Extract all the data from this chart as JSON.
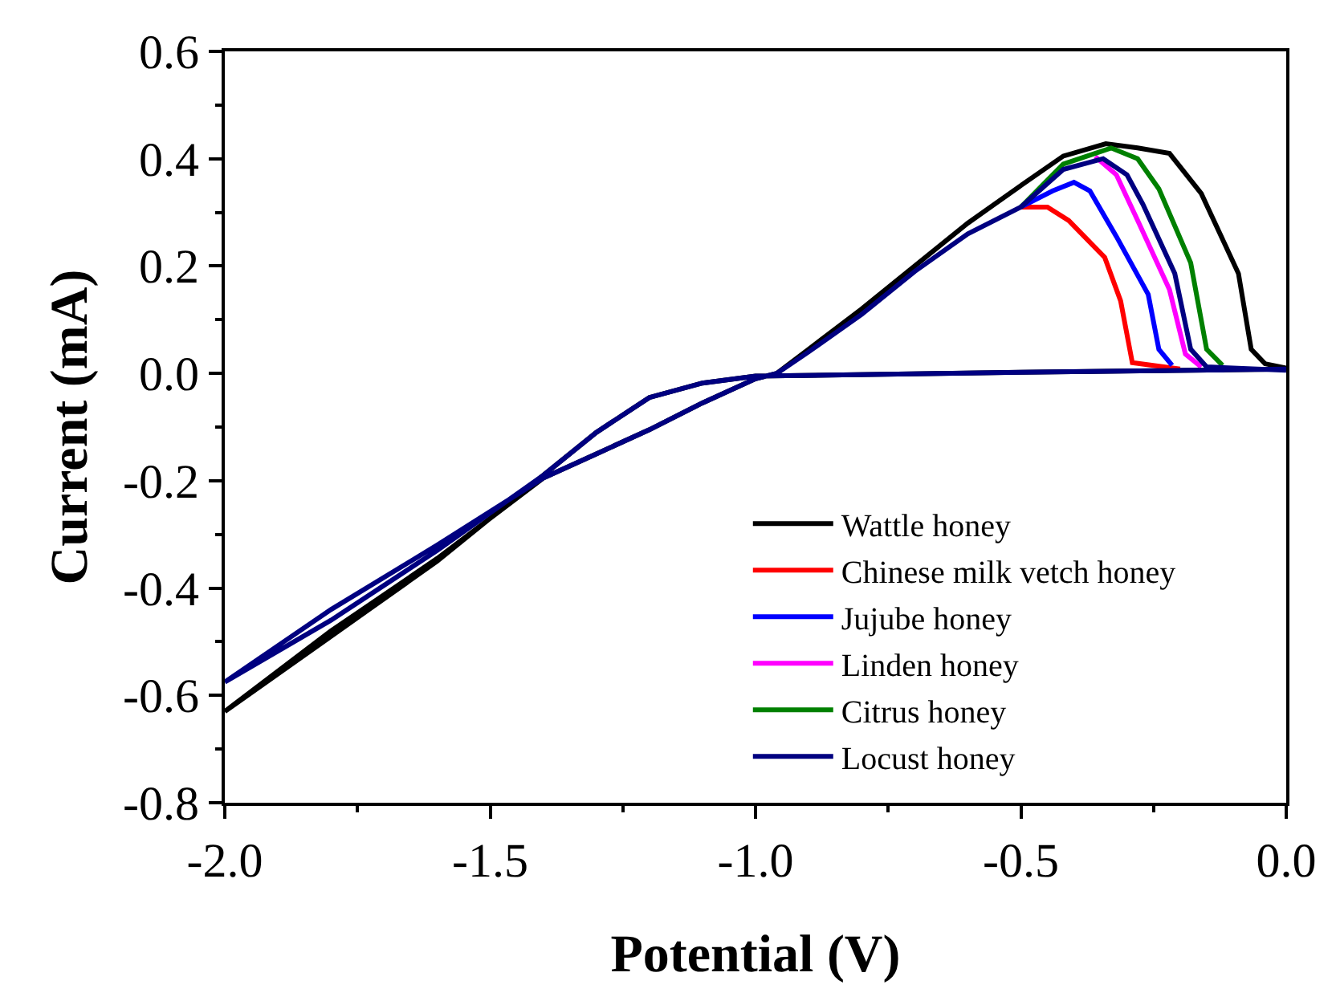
{
  "chart_data": {
    "type": "line",
    "xlabel": "Potential (V)",
    "ylabel": "Current (mA)",
    "xlim": [
      -2.0,
      0.0
    ],
    "xticks": [
      {
        "value": -2.0,
        "label": "-2.0"
      },
      {
        "value": -1.5,
        "label": "-1.5"
      },
      {
        "value": -1.0,
        "label": "-1.0"
      },
      {
        "value": -0.5,
        "label": "-0.5"
      },
      {
        "value": 0.0,
        "label": "0.0"
      }
    ],
    "ylim": [
      -0.8,
      0.6
    ],
    "yticks": [
      {
        "value": -0.8,
        "label": "-0.8"
      },
      {
        "value": -0.6,
        "label": "-0.6"
      },
      {
        "value": -0.4,
        "label": "-0.4"
      },
      {
        "value": -0.2,
        "label": "-0.2"
      },
      {
        "value": 0.0,
        "label": "0.0"
      },
      {
        "value": 0.2,
        "label": "0.2"
      },
      {
        "value": 0.4,
        "label": "0.4"
      },
      {
        "value": 0.6,
        "label": "0.6"
      }
    ],
    "legend": "bottom right",
    "marker": "none",
    "line_style": "solid",
    "series": [
      {
        "name": "Wattle honey",
        "color": "#000000",
        "x": [
          0,
          -0.5,
          -1.0,
          -1.1,
          -1.2,
          -1.3,
          -1.4,
          -1.6,
          -1.8,
          -2.0,
          -1.8,
          -1.6,
          -1.4,
          -1.3,
          -1.2,
          -1.1,
          -1.0,
          -0.96,
          -0.9,
          -0.8,
          -0.7,
          -0.6,
          -0.5,
          -0.42,
          -0.34,
          -0.28,
          -0.22,
          -0.16,
          -0.09,
          -0.066,
          -0.04,
          0
        ],
        "values": [
          0.008,
          0.002,
          -0.005,
          -0.018,
          -0.045,
          -0.11,
          -0.19,
          -0.35,
          -0.49,
          -0.63,
          -0.48,
          -0.345,
          -0.195,
          -0.15,
          -0.105,
          -0.055,
          -0.01,
          0,
          0.045,
          0.12,
          0.2,
          0.28,
          0.35,
          0.405,
          0.428,
          0.42,
          0.41,
          0.335,
          0.186,
          0.045,
          0.018,
          0.01
        ]
      },
      {
        "name": "Chinese milk vetch honey",
        "color": "#ff0000",
        "x": [
          -0.5,
          -0.45,
          -0.41,
          -0.342,
          -0.312,
          -0.29,
          -0.2
        ],
        "values": [
          0.31,
          0.31,
          0.285,
          0.216,
          0.135,
          0.02,
          0.008
        ]
      },
      {
        "name": "Jujube honey",
        "color": "#0000ff",
        "x": [
          -0.5,
          -0.44,
          -0.4,
          -0.37,
          -0.32,
          -0.26,
          -0.24,
          -0.215
        ],
        "values": [
          0.31,
          0.34,
          0.356,
          0.34,
          0.255,
          0.147,
          0.045,
          0.015
        ]
      },
      {
        "name": "Linden honey",
        "color": "#ff00ff",
        "x": [
          -0.36,
          -0.32,
          -0.28,
          -0.22,
          -0.19,
          -0.16
        ],
        "values": [
          0.404,
          0.37,
          0.285,
          0.156,
          0.036,
          0.012
        ]
      },
      {
        "name": "Citrus honey",
        "color": "#008000",
        "x": [
          -0.5,
          -0.42,
          -0.33,
          -0.28,
          -0.24,
          -0.18,
          -0.15,
          -0.12
        ],
        "values": [
          0.31,
          0.39,
          0.42,
          0.4,
          0.344,
          0.206,
          0.045,
          0.015
        ]
      },
      {
        "name": "Locust honey",
        "color": "#000080",
        "x": [
          0,
          -0.5,
          -1.0,
          -1.1,
          -1.2,
          -1.3,
          -1.4,
          -1.6,
          -1.8,
          -2.0,
          -1.8,
          -1.6,
          -1.4,
          -1.3,
          -1.2,
          -1.1,
          -1.0,
          -0.96,
          -0.9,
          -0.8,
          -0.7,
          -0.6,
          -0.5,
          -0.42,
          -0.345,
          -0.3,
          -0.27,
          -0.21,
          -0.18,
          -0.15,
          0
        ],
        "values": [
          0.008,
          0.002,
          -0.005,
          -0.018,
          -0.045,
          -0.11,
          -0.19,
          -0.33,
          -0.46,
          -0.575,
          -0.44,
          -0.32,
          -0.195,
          -0.15,
          -0.105,
          -0.055,
          -0.01,
          0,
          0.04,
          0.11,
          0.19,
          0.26,
          0.31,
          0.38,
          0.4,
          0.37,
          0.315,
          0.186,
          0.045,
          0.012,
          0.006
        ]
      }
    ]
  }
}
